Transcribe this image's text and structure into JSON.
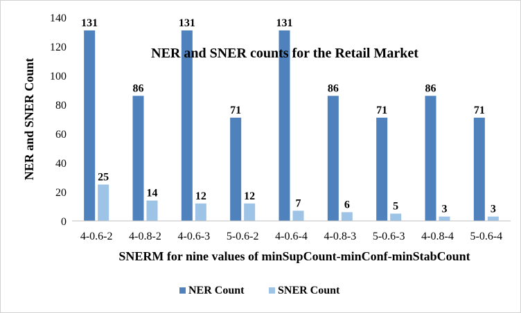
{
  "chart_data": {
    "type": "bar",
    "title": "NER and SNER counts for the Retail Market",
    "xlabel": "SNERM for nine values of minSupCount-minConf-minStabCount",
    "ylabel": "NER and SNER Count",
    "categories": [
      "4-0.6-2",
      "4-0.8-2",
      "4-0.6-3",
      "5-0.6-2",
      "4-0.6-4",
      "4-0.8-3",
      "5-0.6-3",
      "4-0.8-4",
      "5-0.6-4"
    ],
    "series": [
      {
        "name": "NER Count",
        "values": [
          131,
          86,
          131,
          71,
          131,
          86,
          71,
          86,
          71
        ],
        "color": "#4f81bd"
      },
      {
        "name": "SNER Count",
        "values": [
          25,
          14,
          12,
          12,
          7,
          6,
          5,
          3,
          3
        ],
        "color": "#9dc3e6"
      }
    ],
    "ylim": [
      0,
      140
    ],
    "yticks": [
      "0",
      "20",
      "40",
      "60",
      "80",
      "100",
      "120",
      "140"
    ],
    "grid": false,
    "legend": "bottom"
  }
}
